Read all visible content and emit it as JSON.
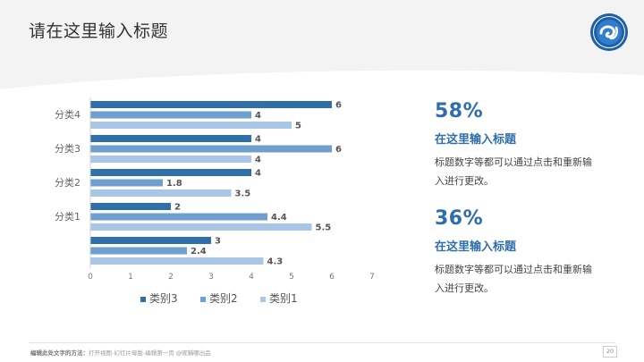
{
  "header": {
    "title": "请在这里输入标题"
  },
  "chart_data": {
    "type": "bar",
    "orientation": "horizontal",
    "categories": [
      "",
      "分类1",
      "分类2",
      "分类3",
      "分类4"
    ],
    "series": [
      {
        "name": "类别3",
        "color": "#2e6eaa",
        "values": [
          3,
          2,
          4,
          4,
          6
        ]
      },
      {
        "name": "类别2",
        "color": "#6f9fcf",
        "values": [
          2.4,
          4.4,
          1.8,
          6,
          4
        ]
      },
      {
        "name": "类别1",
        "color": "#a9c6e6",
        "values": [
          4.3,
          5.5,
          3.5,
          4,
          5
        ]
      }
    ],
    "xlim": [
      0,
      7
    ],
    "xticks": [
      0,
      1,
      2,
      3,
      4,
      5,
      6,
      7
    ],
    "data_labels": [
      [
        "3",
        "2.4",
        "4.3"
      ],
      [
        "2",
        "4.4",
        "5.5"
      ],
      [
        "4",
        "1.8",
        "3.5"
      ],
      [
        "4",
        "6",
        "4"
      ],
      [
        "6",
        "4",
        "5"
      ]
    ],
    "legend_position": "bottom",
    "grid": false
  },
  "stats": [
    {
      "value": "58%",
      "title": "在这里输入标题",
      "desc": "标题数字等都可以通过点击和重新输入进行更改。"
    },
    {
      "value": "36%",
      "title": "在这里输入标题",
      "desc": "标题数字等都可以通过点击和重新输入进行更改。"
    }
  ],
  "footer": {
    "note_label": "编辑此处文字的方法：",
    "note_text": "打开视图-幻灯片母版-编辑第一页 @昵稱哪出品",
    "page_number": "20"
  }
}
